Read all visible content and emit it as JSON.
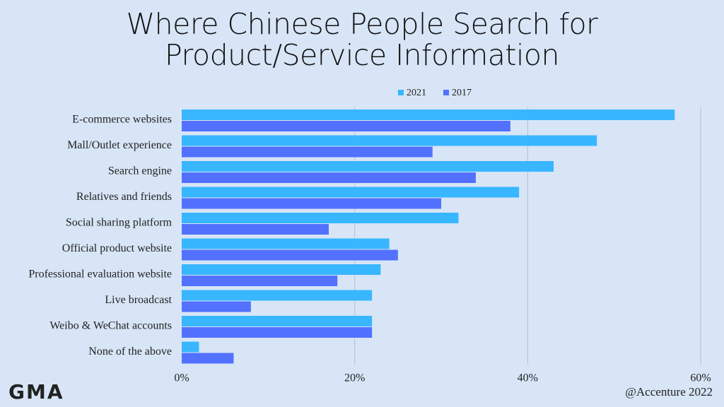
{
  "chart_data": {
    "type": "hbar",
    "title": "Where Chinese People Search for Product/Service Information",
    "categories": [
      "E-commerce websites",
      "Mall/Outlet experience",
      "Search engine",
      "Relatives and friends",
      "Social sharing platform",
      "Official product website",
      "Professional evaluation website",
      "Live broadcast",
      "Weibo & WeChat accounts",
      "None of the above"
    ],
    "series": [
      {
        "name": "2021",
        "color": "#38b6ff",
        "values": [
          57,
          48,
          43,
          39,
          32,
          24,
          23,
          22,
          22,
          2
        ]
      },
      {
        "name": "2017",
        "color": "#5271ff",
        "values": [
          38,
          29,
          34,
          30,
          17,
          25,
          18,
          8,
          22,
          6
        ]
      }
    ],
    "xlim": [
      0,
      60
    ],
    "xticks": [
      {
        "value": 0,
        "label": "0%"
      },
      {
        "value": 20,
        "label": "20%"
      },
      {
        "value": 40,
        "label": "40%"
      },
      {
        "value": 60,
        "label": "60%"
      }
    ],
    "grid": true,
    "legend": "top"
  },
  "logo": "GMA",
  "source": "@Accenture 2022"
}
